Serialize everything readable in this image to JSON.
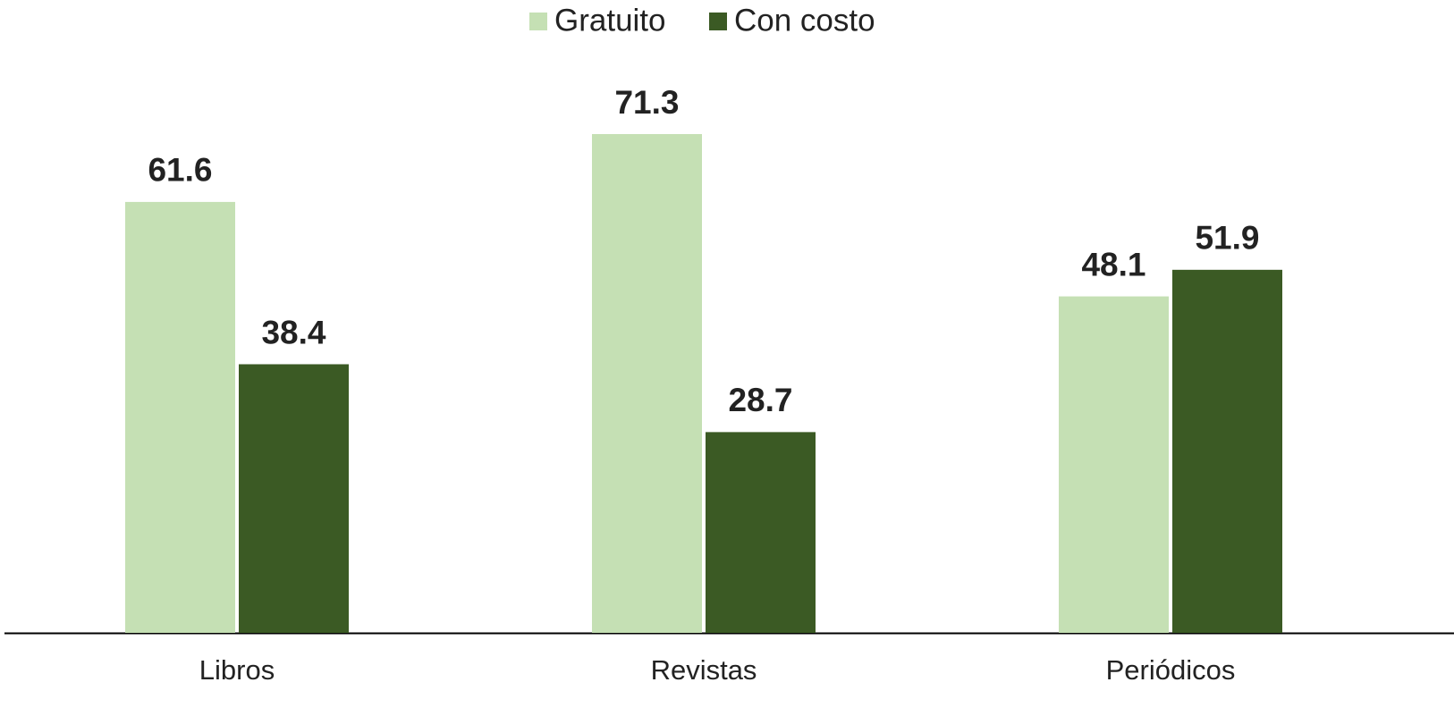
{
  "chart_data": {
    "type": "bar",
    "categories": [
      "Libros",
      "Revistas",
      "Periódicos"
    ],
    "series": [
      {
        "name": "Gratuito",
        "color": "#c5e0b4",
        "values": [
          61.6,
          71.3,
          48.1
        ]
      },
      {
        "name": "Con costo",
        "color": "#3b5a24",
        "values": [
          38.4,
          28.7,
          51.9
        ]
      }
    ],
    "legend": "top"
  }
}
